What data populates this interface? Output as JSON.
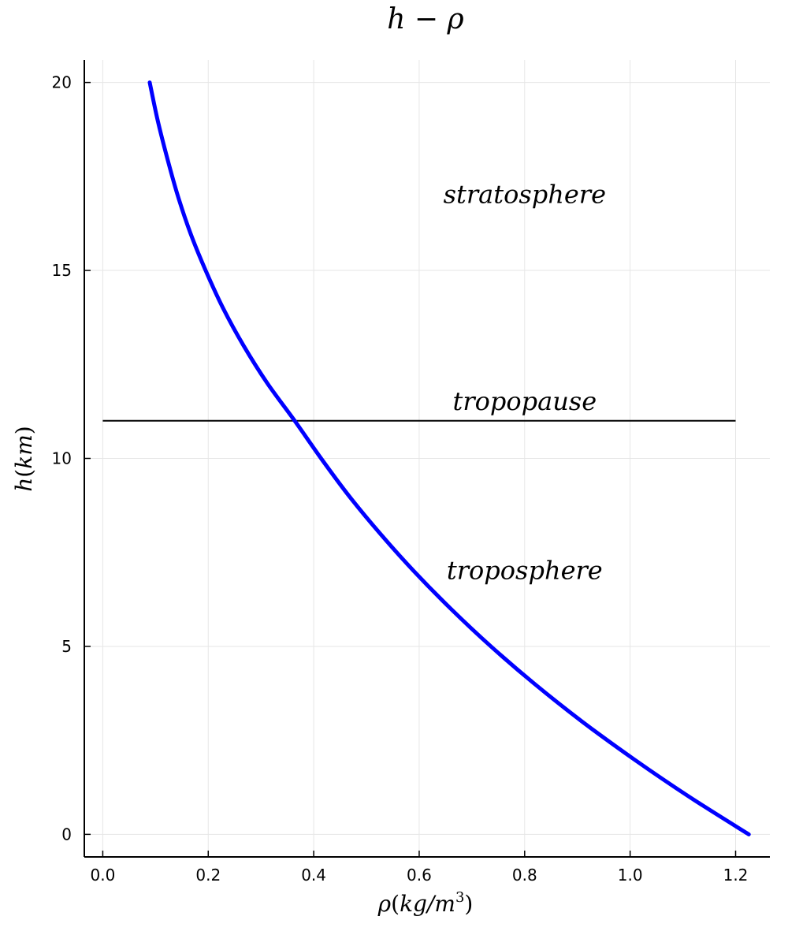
{
  "chart_data": {
    "type": "line",
    "title": {
      "italic_a": "h",
      "op": " − ",
      "italic_b": "ρ"
    },
    "xlabel": {
      "sym": "ρ",
      "open": "(",
      "unit": "kg/m",
      "sup": "3",
      "close": ")"
    },
    "ylabel": {
      "sym": "h",
      "open": "(",
      "unit": "km",
      "close": ")"
    },
    "xlim": [
      -0.035,
      1.265
    ],
    "ylim": [
      -0.6,
      20.6
    ],
    "xticks": [
      0.0,
      0.2,
      0.4,
      0.6,
      0.8,
      1.0,
      1.2
    ],
    "xtick_labels": [
      "0.0",
      "0.2",
      "0.4",
      "0.6",
      "0.8",
      "1.0",
      "1.2"
    ],
    "yticks": [
      0,
      5,
      10,
      15,
      20
    ],
    "ytick_labels": [
      "0",
      "5",
      "10",
      "15",
      "20"
    ],
    "grid": true,
    "series": [
      {
        "color": "#0000ff",
        "points": [
          [
            1.225,
            0
          ],
          [
            1.112,
            1
          ],
          [
            1.007,
            2
          ],
          [
            0.909,
            3
          ],
          [
            0.819,
            4
          ],
          [
            0.736,
            5
          ],
          [
            0.66,
            6
          ],
          [
            0.59,
            7
          ],
          [
            0.526,
            8
          ],
          [
            0.467,
            9
          ],
          [
            0.414,
            10
          ],
          [
            0.364,
            11
          ],
          [
            0.312,
            12
          ],
          [
            0.267,
            13
          ],
          [
            0.228,
            14
          ],
          [
            0.195,
            15
          ],
          [
            0.166,
            16
          ],
          [
            0.142,
            17
          ],
          [
            0.122,
            18
          ],
          [
            0.104,
            19
          ],
          [
            0.089,
            20
          ]
        ]
      }
    ],
    "hline": {
      "y": 11,
      "x_from": 0.0,
      "x_to": 1.2,
      "color": "#000000"
    },
    "annotations": [
      {
        "text": "stratosphere",
        "x": 0.8,
        "y": 17.0
      },
      {
        "text": "tropopause",
        "x": 0.8,
        "y": 11.5
      },
      {
        "text": "troposphere",
        "x": 0.8,
        "y": 7.0
      }
    ]
  }
}
